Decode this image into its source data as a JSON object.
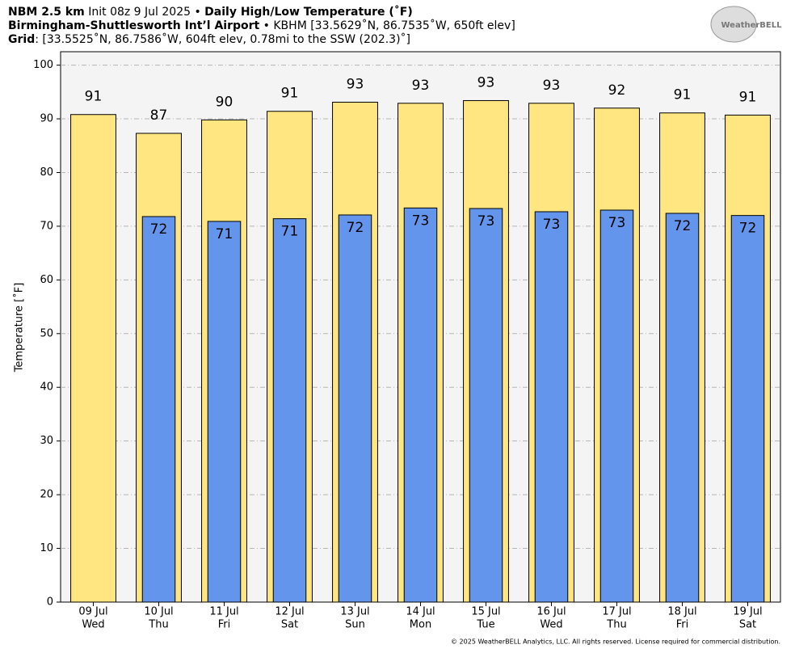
{
  "chart_data": {
    "type": "bar",
    "title": [
      "NBM 2.5 km",
      " Init 08z 9 Jul 2025 • ",
      "Daily High/Low Temperature (˚F)"
    ],
    "subtitle": [
      "Birmingham-Shuttlesworth Int’l Airport",
      " • KBHM [33.5629˚N, 86.7535˚W, 650ft elev]"
    ],
    "grid_info": [
      "Grid",
      ": [33.5525˚N, 86.7586˚W, 604ft elev, 0.78mi to the SSW (202.3)˚]"
    ],
    "logo": "WeatherBELL",
    "footer": "© 2025 WeatherBELL Analytics, LLC. All rights reserved. License required for commercial distribution.",
    "y_label": "Temperature [˚F]",
    "categories": [
      [
        "09 Jul",
        "Wed"
      ],
      [
        "10 Jul",
        "Thu"
      ],
      [
        "11 Jul",
        "Fri"
      ],
      [
        "12 Jul",
        "Sat"
      ],
      [
        "13 Jul",
        "Sun"
      ],
      [
        "14 Jul",
        "Mon"
      ],
      [
        "15 Jul",
        "Tue"
      ],
      [
        "16 Jul",
        "Wed"
      ],
      [
        "17 Jul",
        "Thu"
      ],
      [
        "18 Jul",
        "Fri"
      ],
      [
        "19 Jul",
        "Sat"
      ]
    ],
    "series": [
      {
        "color": "#ffe680",
        "values": [
          90.8,
          87.3,
          89.8,
          91.4,
          93.1,
          92.9,
          93.4,
          92.9,
          92.0,
          91.1,
          90.7
        ],
        "value_labels": [
          "91",
          "87",
          "90",
          "91",
          "93",
          "93",
          "93",
          "93",
          "92",
          "91",
          "91"
        ]
      },
      {
        "color": "#6495ed",
        "values": [
          null,
          71.8,
          70.9,
          71.4,
          72.1,
          73.4,
          73.3,
          72.7,
          73.0,
          72.4,
          72.0
        ],
        "value_labels": [
          null,
          "72",
          "71",
          "71",
          "72",
          "73",
          "73",
          "73",
          "73",
          "72",
          "72"
        ]
      }
    ],
    "ylim": [
      0,
      102.5
    ],
    "yticks": [
      0,
      10,
      20,
      30,
      40,
      50,
      60,
      70,
      80,
      90,
      100
    ],
    "grid": true
  }
}
